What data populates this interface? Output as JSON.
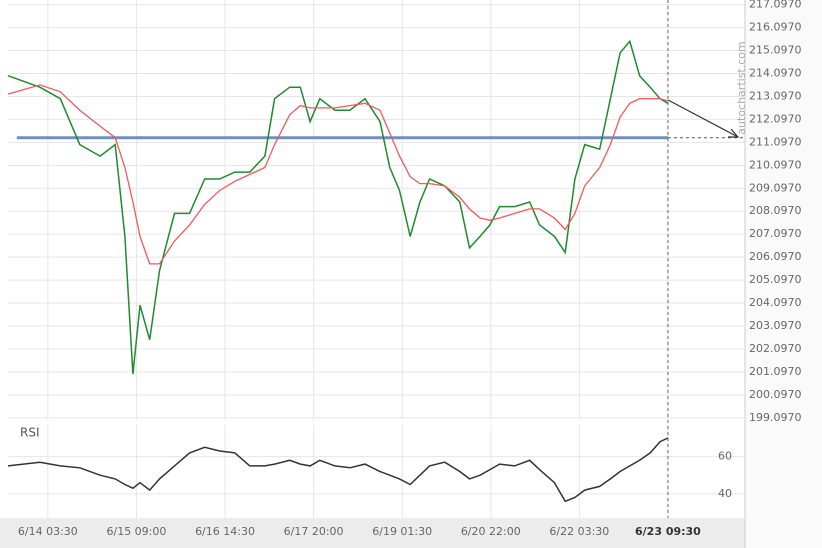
{
  "chart_data": [
    {
      "type": "line",
      "watermark": "autochartist.com",
      "xlim": [
        5.5,
        88.7
      ],
      "ylim": [
        199.0,
        217.3
      ],
      "yticks": [
        {
          "value": 199.097,
          "label": "199.0970"
        },
        {
          "value": 200.097,
          "label": "200.0970"
        },
        {
          "value": 201.097,
          "label": "201.0970"
        },
        {
          "value": 202.097,
          "label": "202.0970"
        },
        {
          "value": 203.097,
          "label": "203.0970"
        },
        {
          "value": 204.097,
          "label": "204.0970"
        },
        {
          "value": 205.097,
          "label": "205.0970"
        },
        {
          "value": 206.097,
          "label": "206.0970"
        },
        {
          "value": 207.097,
          "label": "207.0970"
        },
        {
          "value": 208.097,
          "label": "208.0970"
        },
        {
          "value": 209.097,
          "label": "209.0970"
        },
        {
          "value": 210.097,
          "label": "210.0970"
        },
        {
          "value": 211.097,
          "label": "211.0970"
        },
        {
          "value": 212.097,
          "label": "212.0970"
        },
        {
          "value": 213.097,
          "label": "213.0970"
        },
        {
          "value": 214.097,
          "label": "214.0970"
        },
        {
          "value": 215.097,
          "label": "215.0970"
        },
        {
          "value": 216.097,
          "label": "216.0970"
        },
        {
          "value": 217.097,
          "label": "217.0970"
        }
      ],
      "x": [
        5.5,
        9.1,
        11.4,
        13.6,
        15.9,
        17.6,
        18.7,
        19.6,
        20.4,
        21.5,
        22.6,
        24.3,
        26,
        27.7,
        29.4,
        31.1,
        32.8,
        34.5,
        35.6,
        37.3,
        38.5,
        39.6,
        40.7,
        42.4,
        44.1,
        45.8,
        47.5,
        48.6,
        49.7,
        50.9,
        52,
        53.1,
        54.8,
        56.5,
        57.6,
        58.8,
        59.9,
        61,
        62.7,
        64.4,
        65.5,
        67.2,
        68.4,
        69.5,
        70.6,
        72.3,
        73.5,
        74.6,
        75.7,
        76.8,
        78,
        79.1,
        80
      ],
      "series": [
        {
          "color": "#1f8a2e",
          "values": [
            214,
            213.5,
            213,
            211,
            210.5,
            211,
            207,
            201,
            204,
            202.5,
            205.5,
            208,
            208,
            209.5,
            209.5,
            209.8,
            209.8,
            210.5,
            213,
            213.5,
            213.5,
            212,
            213,
            212.5,
            212.5,
            213,
            212,
            210,
            209,
            207,
            208.5,
            209.5,
            209.2,
            208.5,
            206.5,
            207,
            207.5,
            208.3,
            208.3,
            208.5,
            207.5,
            207,
            206.3,
            209.5,
            211,
            210.8,
            213,
            215,
            215.5,
            214,
            213.5,
            213,
            212.8
          ]
        },
        {
          "color": "#f05a5a",
          "values": [
            213.2,
            213.6,
            213.3,
            212.5,
            211.8,
            211.3,
            210,
            208.5,
            207,
            205.8,
            205.8,
            206.8,
            207.5,
            208.4,
            209,
            209.4,
            209.7,
            210,
            211,
            212.3,
            212.7,
            212.6,
            212.6,
            212.6,
            212.7,
            212.8,
            212.5,
            211.5,
            210.5,
            209.6,
            209.3,
            209.3,
            209.2,
            208.7,
            208.2,
            207.8,
            207.7,
            207.8,
            208,
            208.2,
            208.2,
            207.8,
            207.3,
            208,
            209.2,
            210,
            211,
            212.2,
            212.8,
            213,
            213,
            213,
            212.9
          ]
        }
      ],
      "hline": 211.3,
      "hline_color": "#6f8fc0",
      "grid": true
    },
    {
      "type": "line",
      "title": "RSI",
      "xlim": [
        5.5,
        88.7
      ],
      "ylim": [
        27,
        77
      ],
      "yticks": [
        40,
        60
      ],
      "xticks": [
        {
          "value": 10,
          "label": "6/14 03:30"
        },
        {
          "value": 20,
          "label": "6/15 09:00"
        },
        {
          "value": 30,
          "label": "6/16 14:30"
        },
        {
          "value": 40,
          "label": "6/17 20:00"
        },
        {
          "value": 50,
          "label": "6/19 01:30"
        },
        {
          "value": 60,
          "label": "6/20 22:00"
        },
        {
          "value": 70,
          "label": "6/22 03:30"
        },
        {
          "value": 80,
          "label": "6/23 09:30"
        }
      ],
      "x": [
        5.5,
        9.1,
        11.4,
        13.6,
        15.9,
        17.6,
        18.7,
        19.6,
        20.4,
        21.5,
        22.6,
        24.3,
        26,
        27.7,
        29.4,
        31.1,
        32.8,
        34.5,
        35.6,
        37.3,
        38.5,
        39.6,
        40.7,
        42.4,
        44.1,
        45.8,
        47.5,
        48.6,
        49.7,
        50.9,
        52,
        53.1,
        54.8,
        56.5,
        57.6,
        58.8,
        59.9,
        61,
        62.7,
        64.4,
        65.5,
        67.2,
        68.4,
        69.5,
        70.6,
        72.3,
        73.5,
        74.6,
        75.7,
        76.8,
        78,
        79.1,
        80
      ],
      "series": [
        {
          "color": "#333333",
          "values": [
            55,
            57,
            55,
            54,
            50,
            48,
            45,
            43,
            46,
            42,
            48,
            55,
            62,
            65,
            63,
            62,
            55,
            55,
            56,
            58,
            56,
            55,
            58,
            55,
            54,
            56,
            52,
            50,
            48,
            45,
            50,
            55,
            57,
            52,
            48,
            50,
            53,
            56,
            55,
            58,
            53,
            46,
            36,
            38,
            42,
            44,
            48,
            52,
            55,
            58,
            62,
            68,
            70
          ]
        }
      ],
      "grid": true
    }
  ]
}
